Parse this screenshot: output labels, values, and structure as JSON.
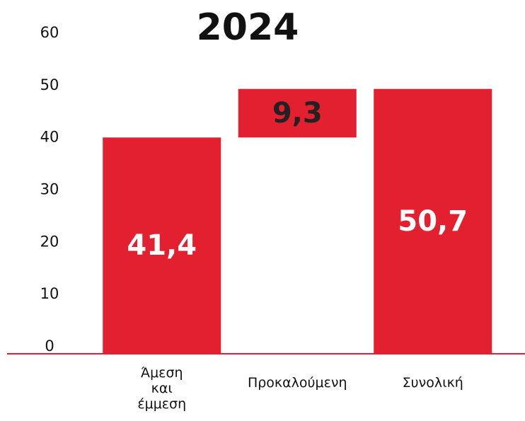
{
  "chart_data": {
    "type": "waterfall",
    "title": "2024",
    "categories": [
      "Άμεση και έμμεση",
      "Προκαλούμενη",
      "Συνολική"
    ],
    "values": [
      41.4,
      9.3,
      50.7
    ],
    "value_labels": [
      "41,4",
      "9,3",
      "50,7"
    ],
    "color": "#e3202f",
    "ylim": [
      0,
      60
    ],
    "yticks": [
      0,
      10,
      20,
      30,
      40,
      50,
      60
    ],
    "grid": false
  }
}
